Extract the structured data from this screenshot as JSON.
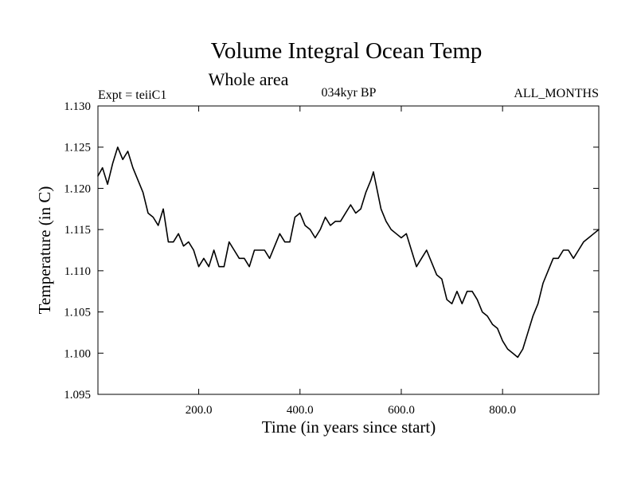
{
  "chart_data": {
    "type": "line",
    "title": "Volume Integral Ocean Temp",
    "subtitle": "Whole area",
    "annotations": {
      "left": "Expt = teiiC1",
      "center": "034kyr BP",
      "right": "ALL_MONTHS"
    },
    "xlabel": "Time (in years since start)",
    "ylabel": "Temperature (in C)",
    "xlim": [
      1,
      990
    ],
    "ylim": [
      1.095,
      1.13
    ],
    "xticks": [
      200,
      400,
      600,
      800
    ],
    "xtick_labels": [
      "200.0",
      "400.0",
      "600.0",
      "800.0"
    ],
    "yticks": [
      1.095,
      1.1,
      1.105,
      1.11,
      1.115,
      1.12,
      1.125,
      1.13
    ],
    "ytick_labels": [
      "1.095",
      "1.100",
      "1.105",
      "1.110",
      "1.115",
      "1.120",
      "1.125",
      "1.130"
    ],
    "grid": false,
    "line_color": "#000000",
    "series": [
      {
        "x": [
          1,
          10,
          20,
          30,
          40,
          50,
          60,
          70,
          80,
          90,
          100,
          110,
          120,
          130,
          140,
          150,
          160,
          170,
          180,
          190,
          200,
          210,
          220,
          230,
          240,
          250,
          260,
          270,
          280,
          290,
          300,
          310,
          320,
          330,
          340,
          350,
          360,
          370,
          380,
          390,
          400,
          410,
          420,
          430,
          440,
          450,
          460,
          470,
          480,
          490,
          500,
          510,
          520,
          530,
          540,
          545,
          550,
          560,
          570,
          580,
          590,
          600,
          610,
          620,
          630,
          640,
          650,
          660,
          670,
          680,
          690,
          700,
          710,
          720,
          730,
          740,
          750,
          760,
          770,
          780,
          790,
          800,
          810,
          820,
          830,
          840,
          850,
          860,
          870,
          880,
          890,
          900,
          910,
          920,
          930,
          940,
          950,
          960,
          970,
          980,
          990
        ],
        "y": [
          1.1215,
          1.1225,
          1.1205,
          1.123,
          1.125,
          1.1235,
          1.1245,
          1.1225,
          1.121,
          1.1195,
          1.117,
          1.1165,
          1.1155,
          1.1175,
          1.1135,
          1.1135,
          1.1145,
          1.113,
          1.1135,
          1.1125,
          1.1105,
          1.1115,
          1.1105,
          1.1125,
          1.1105,
          1.1105,
          1.1135,
          1.1125,
          1.1115,
          1.1115,
          1.1105,
          1.1125,
          1.1125,
          1.1125,
          1.1115,
          1.113,
          1.1145,
          1.1135,
          1.1135,
          1.1165,
          1.117,
          1.1155,
          1.115,
          1.114,
          1.115,
          1.1165,
          1.1155,
          1.116,
          1.116,
          1.117,
          1.118,
          1.117,
          1.1175,
          1.1195,
          1.121,
          1.122,
          1.1205,
          1.1175,
          1.116,
          1.115,
          1.1145,
          1.114,
          1.1145,
          1.1125,
          1.1105,
          1.1115,
          1.1125,
          1.111,
          1.1095,
          1.109,
          1.1065,
          1.106,
          1.1075,
          1.106,
          1.1075,
          1.1075,
          1.1065,
          1.105,
          1.1045,
          1.1035,
          1.103,
          1.1015,
          1.1005,
          1.1,
          1.0995,
          1.1005,
          1.1025,
          1.1045,
          1.106,
          1.1085,
          1.11,
          1.1115,
          1.1115,
          1.1125,
          1.1125,
          1.1115,
          1.1125,
          1.1135,
          1.114,
          1.1145,
          1.115
        ]
      }
    ]
  }
}
